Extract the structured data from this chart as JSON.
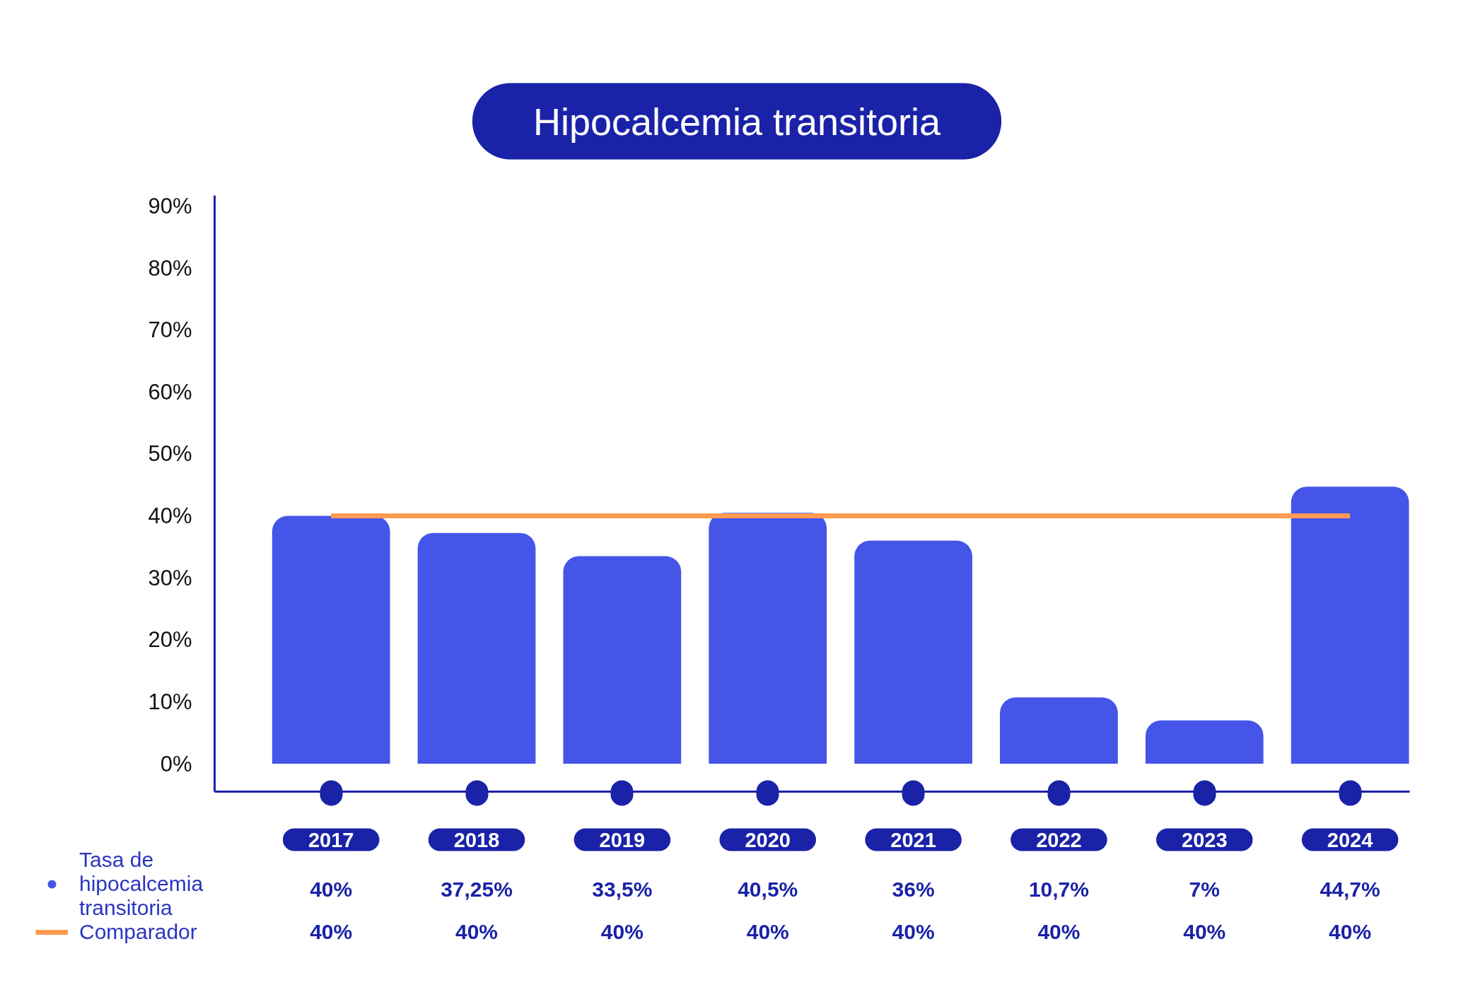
{
  "chart_data": {
    "type": "bar",
    "title": "Hipocalcemia transitoria",
    "categories": [
      "2017",
      "2018",
      "2019",
      "2020",
      "2021",
      "2022",
      "2023",
      "2024"
    ],
    "series": [
      {
        "name": "Tasa de hipocalcemia transitoria",
        "color": "#4455e8",
        "values": [
          40,
          37.25,
          33.5,
          40.5,
          36,
          10.7,
          7,
          44.7
        ],
        "value_labels": [
          "40%",
          "37,25%",
          "33,5%",
          "40,5%",
          "36%",
          "10,7%",
          "7%",
          "44,7%"
        ]
      },
      {
        "name": "Comparador",
        "type": "line",
        "color": "#ff9a52",
        "values": [
          40,
          40,
          40,
          40,
          40,
          40,
          40,
          40
        ],
        "value_labels": [
          "40%",
          "40%",
          "40%",
          "40%",
          "40%",
          "40%",
          "40%",
          "40%"
        ]
      }
    ],
    "ylim": [
      -4.5,
      91.7
    ],
    "yticks": [
      {
        "value": 0,
        "label": "0%"
      },
      {
        "value": 10,
        "label": "10%"
      },
      {
        "value": 20,
        "label": "20%"
      },
      {
        "value": 30,
        "label": "30%"
      },
      {
        "value": 40,
        "label": "40%"
      },
      {
        "value": 50,
        "label": "50%"
      },
      {
        "value": 60,
        "label": "60%"
      },
      {
        "value": 70,
        "label": "70%"
      },
      {
        "value": 80,
        "label": "80%"
      },
      {
        "value": 90,
        "label": "90%"
      }
    ],
    "legend": "bottom left"
  }
}
